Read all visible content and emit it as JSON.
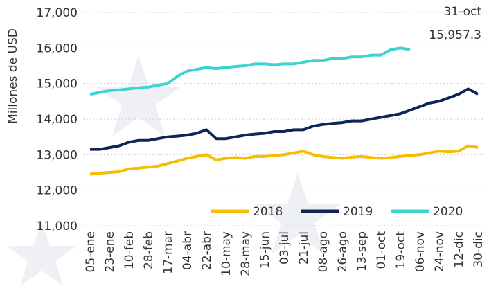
{
  "chart_data": {
    "type": "line",
    "y_label": "Millones de USD",
    "annotation_date": "31-oct",
    "annotation_value": "15,957.3",
    "categories": [
      "05-ene",
      null,
      "23-ene",
      null,
      "10-feb",
      null,
      "28-feb",
      null,
      "17-mar",
      null,
      "04-abr",
      null,
      "22-abr",
      null,
      "10-may",
      null,
      "28-may",
      null,
      "15-jun",
      null,
      "03-jul",
      null,
      "21-jul",
      null,
      "08-ago",
      null,
      "26-ago",
      null,
      "13-sep",
      null,
      "01-oct",
      null,
      "19-oct",
      null,
      "06-nov",
      null,
      "24-nov",
      null,
      "12-dic",
      null,
      "30-dic"
    ],
    "series": [
      {
        "name": "2018",
        "color": "#f7bd00",
        "values": [
          12450,
          12480,
          12500,
          12520,
          12600,
          12620,
          12650,
          12680,
          12750,
          12820,
          12900,
          12950,
          13000,
          12850,
          12900,
          12920,
          12900,
          12950,
          12950,
          12980,
          13000,
          13050,
          13100,
          13000,
          12950,
          12920,
          12900,
          12930,
          12950,
          12920,
          12900,
          12920,
          12950,
          12980,
          13000,
          13050,
          13100,
          13080,
          13100,
          13250,
          13200
        ]
      },
      {
        "name": "2019",
        "color": "#0d2656",
        "values": [
          13150,
          13150,
          13200,
          13250,
          13350,
          13400,
          13400,
          13450,
          13500,
          13520,
          13550,
          13600,
          13700,
          13450,
          13450,
          13500,
          13550,
          13580,
          13600,
          13650,
          13650,
          13700,
          13700,
          13800,
          13850,
          13880,
          13900,
          13950,
          13950,
          14000,
          14050,
          14100,
          14150,
          14250,
          14350,
          14450,
          14500,
          14600,
          14700,
          14850,
          14700
        ]
      },
      {
        "name": "2020",
        "color": "#3ed3d3",
        "values": [
          14700,
          14750,
          14800,
          14820,
          14850,
          14880,
          14900,
          14950,
          15000,
          15200,
          15350,
          15400,
          15450,
          15420,
          15450,
          15480,
          15500,
          15550,
          15550,
          15530,
          15550,
          15550,
          15600,
          15650,
          15650,
          15700,
          15700,
          15750,
          15750,
          15800,
          15800,
          15950,
          16000,
          15957.3,
          null,
          null,
          null,
          null,
          null,
          null,
          null
        ]
      }
    ],
    "ylim": [
      11000,
      17000
    ],
    "yticks": [
      {
        "value": 11000,
        "label": "11,000"
      },
      {
        "value": 12000,
        "label": "12,000"
      },
      {
        "value": 13000,
        "label": "13,000"
      },
      {
        "value": 14000,
        "label": "14,000"
      },
      {
        "value": 15000,
        "label": "15,000"
      },
      {
        "value": 16000,
        "label": "16,000"
      },
      {
        "value": 17000,
        "label": "17,000"
      }
    ],
    "grid": true
  }
}
